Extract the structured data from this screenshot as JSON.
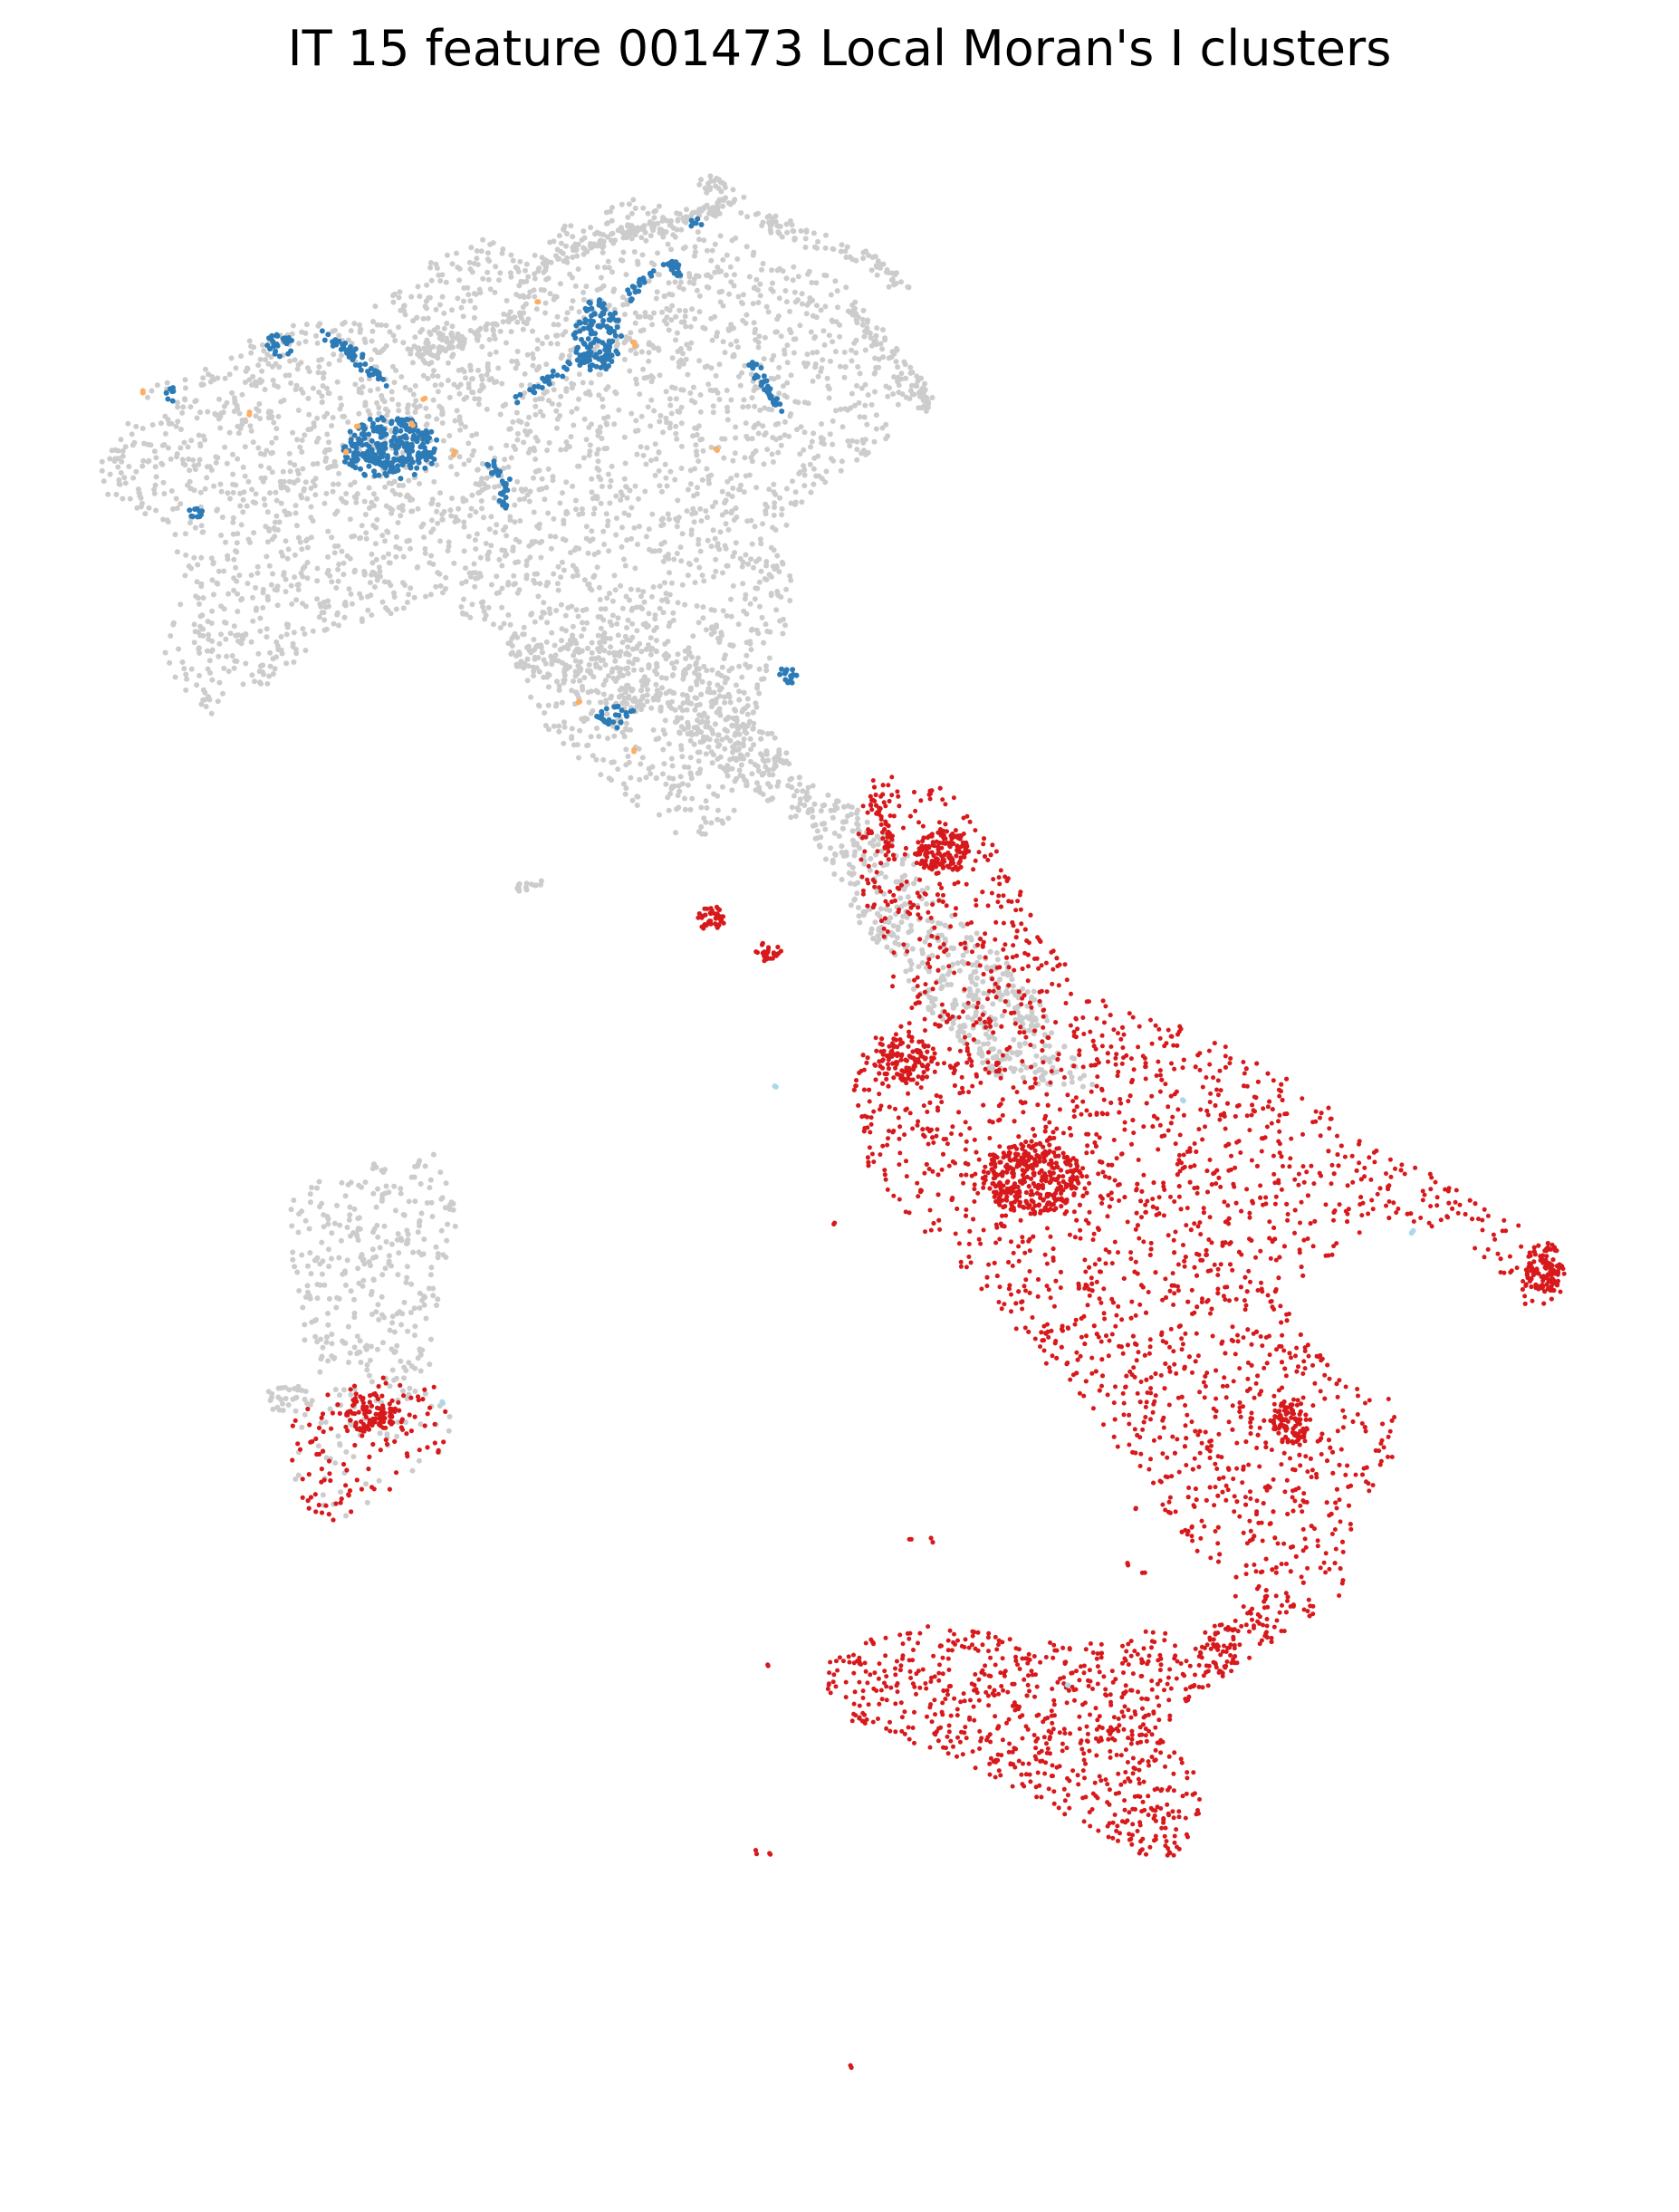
{
  "title": "IT 15 feature 001473 Local Moran's I clusters",
  "map": {
    "type": "scatter",
    "region": "Italy",
    "statistic": "Local Moran's I",
    "axes_visible": false,
    "legend_visible": false,
    "cluster_colors": {
      "not_significant": "#cccccc",
      "high_high": "#d7191c",
      "low_low": "#2c7bb6",
      "low_high": "#abd9e9",
      "high_low": "#fdae61"
    }
  }
}
